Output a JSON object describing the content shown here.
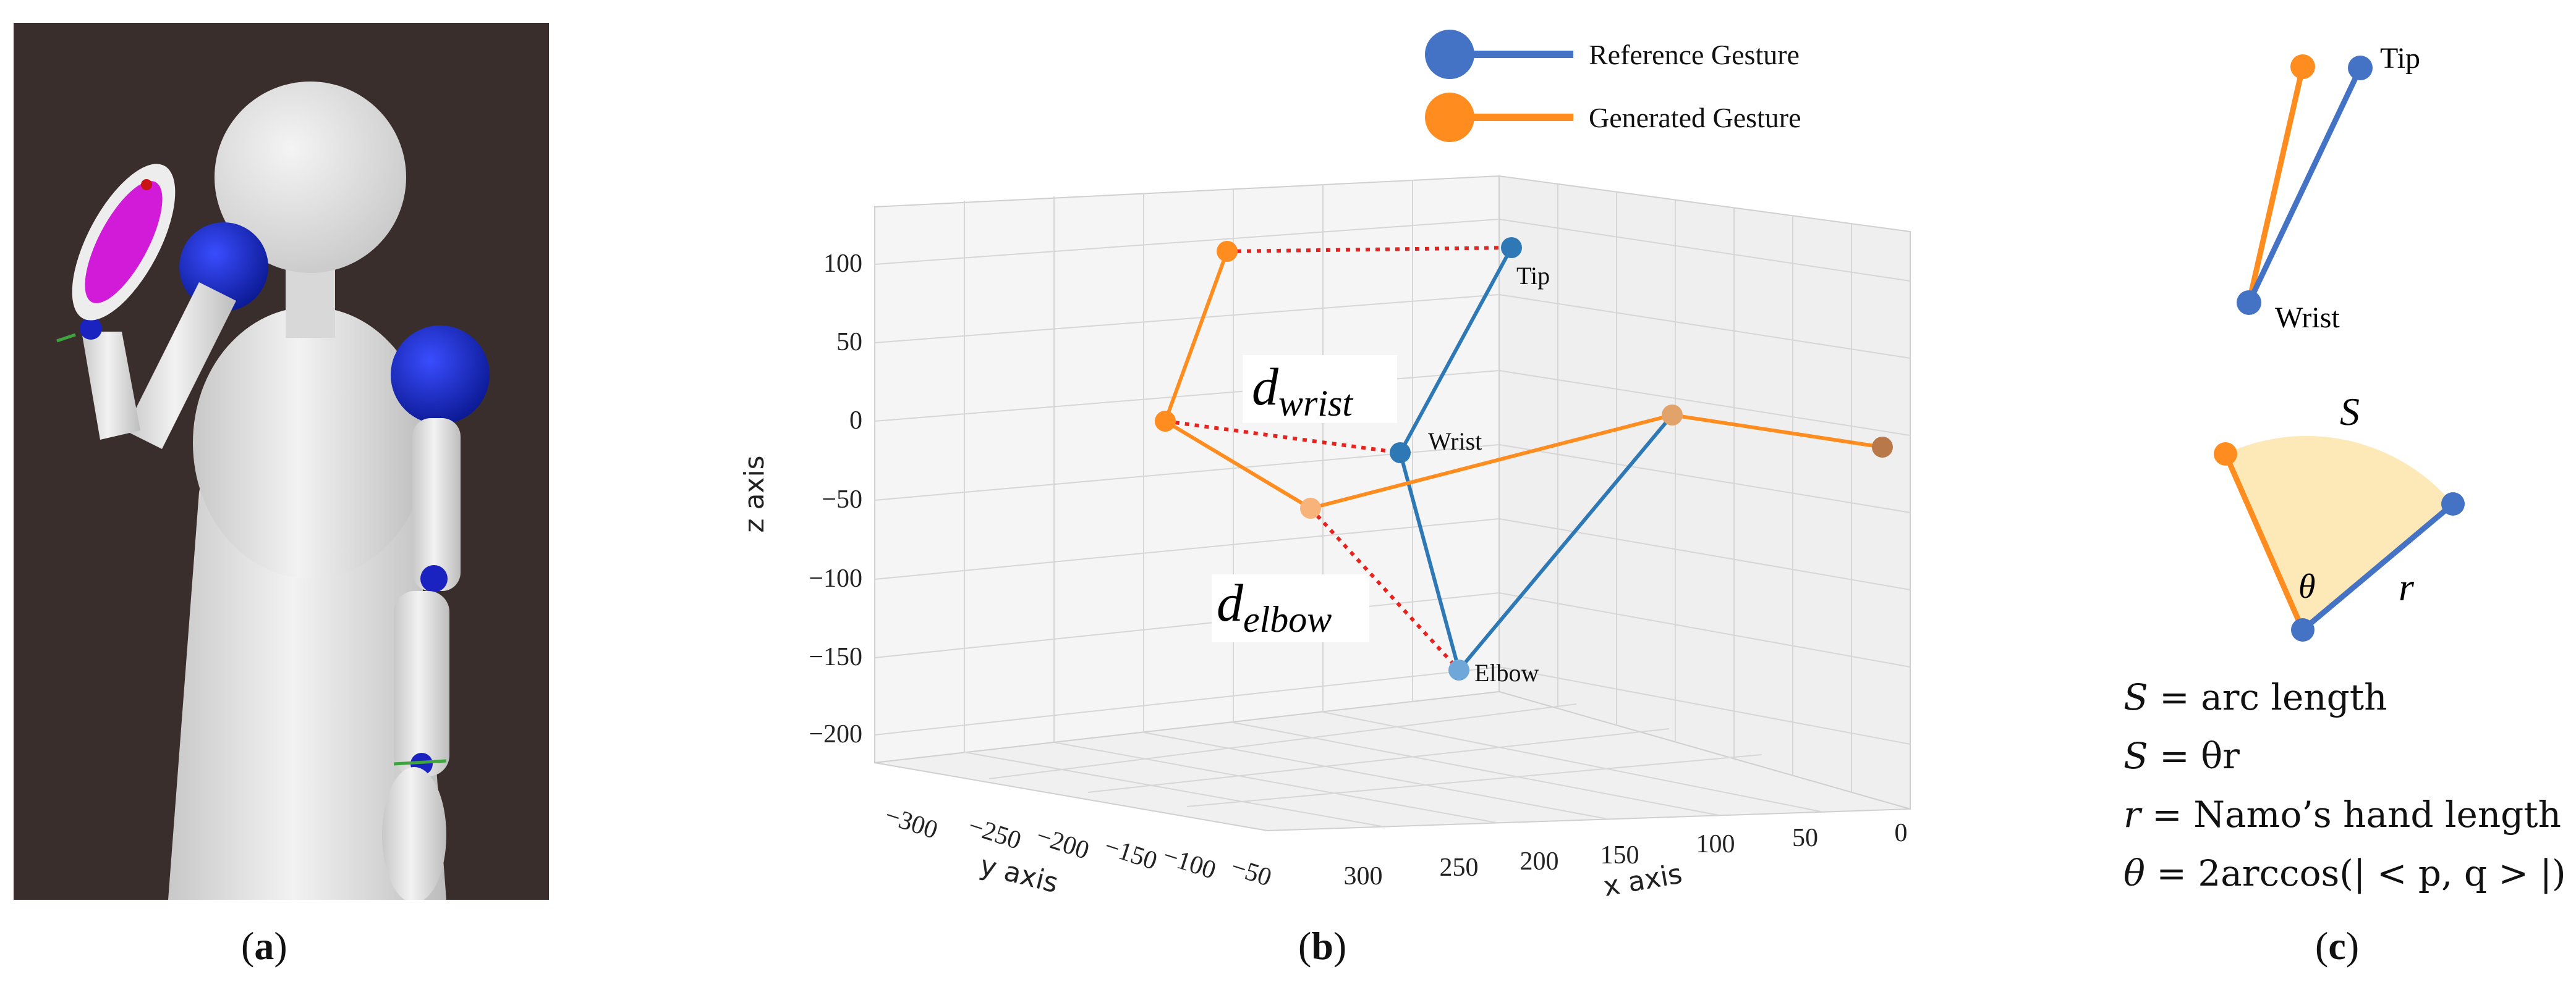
{
  "captions": {
    "a": "a",
    "b": "b",
    "c": "c"
  },
  "legend": [
    {
      "label": "Reference Gesture",
      "color": "#4472C4"
    },
    {
      "label": "Generated Gesture",
      "color": "#ff8c1f"
    }
  ],
  "plot": {
    "xlabel": "x axis",
    "ylabel": "y axis",
    "zlabel": "z axis",
    "z_ticks": [
      "100",
      "50",
      "0",
      "−50",
      "−100",
      "−150",
      "−200"
    ],
    "x_ticks": [
      "300",
      "250",
      "200",
      "150",
      "100",
      "50",
      "0"
    ],
    "y_ticks": [
      "−300",
      "−250",
      "−200",
      "−150",
      "−100",
      "−50"
    ],
    "point_labels": {
      "tip": "Tip",
      "wrist": "Wrist",
      "elbow": "Elbow"
    },
    "d_wrist": {
      "base": "d",
      "sub": "wrist"
    },
    "d_elbow": {
      "base": "d",
      "sub": "elbow"
    }
  },
  "panel_c": {
    "tip_label": "Tip",
    "wrist_label": "Wrist",
    "arc_label": "S",
    "theta_label": "θ",
    "r_label": "r",
    "equations": [
      {
        "lhs": "S",
        "rhs": " = arc length"
      },
      {
        "lhs": "S",
        "rhs": " = θr"
      },
      {
        "lhs": "r",
        "rhs": " = Namo’s hand length"
      },
      {
        "lhs": "θ",
        "rhs": " = 2arccos(| < p, q > |)"
      }
    ]
  },
  "colors": {
    "reference": "#2e79b5",
    "generated": "#ff8c1f",
    "error": "#e8221c",
    "robot_bg": "#3a2e2c",
    "arc_fill": "#fde9b8"
  }
}
